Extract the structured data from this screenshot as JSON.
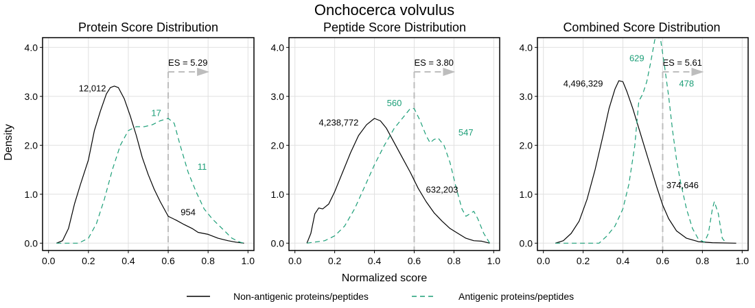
{
  "title": "Onchocerca volvulus",
  "xlabel": "Normalized score",
  "ylabel": "Density",
  "colors": {
    "non_antigenic": "#000000",
    "antigenic": "#1b9e77",
    "threshold": "#bdbdbd",
    "grid": "#e0e0e0"
  },
  "legend": {
    "position": "bottom",
    "items": [
      {
        "label": "Non-antigenic proteins/peptides",
        "style": "solid"
      },
      {
        "label": "Antigenic proteins/peptides",
        "style": "dashed"
      }
    ]
  },
  "chart_data": [
    {
      "type": "line",
      "title": "Protein Score Distribution",
      "xlim": [
        -0.03,
        1.03
      ],
      "ylim": [
        -0.15,
        4.2
      ],
      "x_ticks": [
        "0.0",
        "0.2",
        "0.4",
        "0.6",
        "0.8",
        "1.0"
      ],
      "y_ticks": [
        "0.0",
        "1.0",
        "2.0",
        "3.0",
        "4.0"
      ],
      "threshold": 0.6,
      "threshold_label": "ES = 5.29",
      "threshold_arrow_y": 3.5,
      "series": [
        {
          "name": "Non-antigenic proteins/peptides",
          "color": "#000000",
          "dash": "solid",
          "points": [
            [
              0.04,
              0.0
            ],
            [
              0.07,
              0.05
            ],
            [
              0.1,
              0.3
            ],
            [
              0.13,
              0.8
            ],
            [
              0.16,
              1.2
            ],
            [
              0.2,
              1.7
            ],
            [
              0.23,
              2.3
            ],
            [
              0.26,
              2.7
            ],
            [
              0.29,
              3.05
            ],
            [
              0.31,
              3.18
            ],
            [
              0.33,
              3.21
            ],
            [
              0.35,
              3.18
            ],
            [
              0.38,
              2.95
            ],
            [
              0.41,
              2.6
            ],
            [
              0.44,
              2.2
            ],
            [
              0.47,
              1.75
            ],
            [
              0.5,
              1.4
            ],
            [
              0.53,
              1.1
            ],
            [
              0.56,
              0.85
            ],
            [
              0.6,
              0.55
            ],
            [
              0.64,
              0.47
            ],
            [
              0.68,
              0.38
            ],
            [
              0.72,
              0.3
            ],
            [
              0.75,
              0.22
            ],
            [
              0.8,
              0.18
            ],
            [
              0.85,
              0.1
            ],
            [
              0.9,
              0.05
            ],
            [
              0.94,
              0.02
            ],
            [
              0.98,
              0.0
            ]
          ]
        },
        {
          "name": "Antigenic proteins/peptides",
          "color": "#1b9e77",
          "dash": "dashed",
          "points": [
            [
              0.04,
              0.0
            ],
            [
              0.15,
              0.0
            ],
            [
              0.2,
              0.1
            ],
            [
              0.24,
              0.4
            ],
            [
              0.28,
              0.9
            ],
            [
              0.32,
              1.5
            ],
            [
              0.36,
              2.0
            ],
            [
              0.4,
              2.3
            ],
            [
              0.44,
              2.38
            ],
            [
              0.48,
              2.38
            ],
            [
              0.52,
              2.42
            ],
            [
              0.56,
              2.5
            ],
            [
              0.6,
              2.55
            ],
            [
              0.63,
              2.45
            ],
            [
              0.66,
              2.0
            ],
            [
              0.7,
              1.45
            ],
            [
              0.74,
              1.05
            ],
            [
              0.78,
              0.7
            ],
            [
              0.82,
              0.5
            ],
            [
              0.87,
              0.3
            ],
            [
              0.92,
              0.1
            ],
            [
              0.96,
              0.02
            ],
            [
              0.98,
              0.0
            ]
          ]
        }
      ],
      "annotations": [
        {
          "text": "12,012",
          "x": 0.22,
          "y": 3.1,
          "series": 0
        },
        {
          "text": "17",
          "x": 0.54,
          "y": 2.6,
          "series": 1
        },
        {
          "text": "11",
          "x": 0.77,
          "y": 1.5,
          "series": 1
        },
        {
          "text": "954",
          "x": 0.7,
          "y": 0.57,
          "series": 0
        }
      ]
    },
    {
      "type": "line",
      "title": "Peptide Score Distribution",
      "xlim": [
        -0.03,
        1.03
      ],
      "ylim": [
        -0.15,
        4.2
      ],
      "x_ticks": [
        "0.0",
        "0.2",
        "0.4",
        "0.6",
        "0.8",
        "1.0"
      ],
      "y_ticks": [
        "0.0",
        "1.0",
        "2.0",
        "3.0",
        "4.0"
      ],
      "threshold": 0.6,
      "threshold_label": "ES = 3.80",
      "threshold_arrow_y": 3.5,
      "series": [
        {
          "name": "Non-antigenic proteins/peptides",
          "color": "#000000",
          "dash": "solid",
          "points": [
            [
              0.06,
              0.0
            ],
            [
              0.08,
              0.2
            ],
            [
              0.1,
              0.6
            ],
            [
              0.12,
              0.72
            ],
            [
              0.14,
              0.7
            ],
            [
              0.17,
              0.8
            ],
            [
              0.2,
              1.05
            ],
            [
              0.24,
              1.45
            ],
            [
              0.28,
              1.85
            ],
            [
              0.32,
              2.2
            ],
            [
              0.36,
              2.42
            ],
            [
              0.4,
              2.55
            ],
            [
              0.43,
              2.5
            ],
            [
              0.46,
              2.35
            ],
            [
              0.5,
              2.05
            ],
            [
              0.54,
              1.75
            ],
            [
              0.58,
              1.45
            ],
            [
              0.62,
              1.12
            ],
            [
              0.66,
              0.85
            ],
            [
              0.7,
              0.62
            ],
            [
              0.74,
              0.45
            ],
            [
              0.78,
              0.3
            ],
            [
              0.82,
              0.2
            ],
            [
              0.86,
              0.1
            ],
            [
              0.9,
              0.05
            ],
            [
              0.94,
              0.04
            ],
            [
              0.98,
              0.0
            ]
          ]
        },
        {
          "name": "Antigenic proteins/peptides",
          "color": "#1b9e77",
          "dash": "dashed",
          "points": [
            [
              0.06,
              0.0
            ],
            [
              0.15,
              0.05
            ],
            [
              0.2,
              0.15
            ],
            [
              0.25,
              0.35
            ],
            [
              0.3,
              0.7
            ],
            [
              0.35,
              1.15
            ],
            [
              0.4,
              1.6
            ],
            [
              0.45,
              2.0
            ],
            [
              0.5,
              2.35
            ],
            [
              0.54,
              2.55
            ],
            [
              0.58,
              2.75
            ],
            [
              0.6,
              2.75
            ],
            [
              0.63,
              2.5
            ],
            [
              0.66,
              2.2
            ],
            [
              0.68,
              2.05
            ],
            [
              0.7,
              2.12
            ],
            [
              0.72,
              2.15
            ],
            [
              0.75,
              2.0
            ],
            [
              0.78,
              1.65
            ],
            [
              0.81,
              1.15
            ],
            [
              0.84,
              0.7
            ],
            [
              0.86,
              0.55
            ],
            [
              0.88,
              0.6
            ],
            [
              0.9,
              0.65
            ],
            [
              0.92,
              0.5
            ],
            [
              0.95,
              0.2
            ],
            [
              0.98,
              0.0
            ]
          ]
        }
      ],
      "annotations": [
        {
          "text": "4,238,772",
          "x": 0.22,
          "y": 2.4,
          "series": 0
        },
        {
          "text": "560",
          "x": 0.5,
          "y": 2.8,
          "series": 1
        },
        {
          "text": "547",
          "x": 0.86,
          "y": 2.2,
          "series": 1
        },
        {
          "text": "632,203",
          "x": 0.74,
          "y": 1.03,
          "series": 0
        }
      ]
    },
    {
      "type": "line",
      "title": "Combined Score Distribution",
      "xlim": [
        -0.03,
        1.03
      ],
      "ylim": [
        -0.15,
        4.2
      ],
      "x_ticks": [
        "0.0",
        "0.2",
        "0.4",
        "0.6",
        "0.8",
        "1.0"
      ],
      "y_ticks": [
        "0.0",
        "1.0",
        "2.0",
        "3.0",
        "4.0"
      ],
      "threshold": 0.6,
      "threshold_label": "ES = 5.61",
      "threshold_arrow_y": 3.5,
      "series": [
        {
          "name": "Non-antigenic proteins/peptides",
          "color": "#000000",
          "dash": "solid",
          "points": [
            [
              0.06,
              0.0
            ],
            [
              0.1,
              0.05
            ],
            [
              0.14,
              0.2
            ],
            [
              0.18,
              0.45
            ],
            [
              0.22,
              0.9
            ],
            [
              0.26,
              1.5
            ],
            [
              0.3,
              2.2
            ],
            [
              0.33,
              2.75
            ],
            [
              0.36,
              3.15
            ],
            [
              0.38,
              3.32
            ],
            [
              0.4,
              3.3
            ],
            [
              0.42,
              3.1
            ],
            [
              0.45,
              2.75
            ],
            [
              0.48,
              2.35
            ],
            [
              0.51,
              1.95
            ],
            [
              0.54,
              1.55
            ],
            [
              0.57,
              1.15
            ],
            [
              0.6,
              0.78
            ],
            [
              0.63,
              0.5
            ],
            [
              0.67,
              0.25
            ],
            [
              0.72,
              0.1
            ],
            [
              0.78,
              0.03
            ],
            [
              0.85,
              0.01
            ],
            [
              0.97,
              0.0
            ]
          ]
        },
        {
          "name": "Antigenic proteins/peptides",
          "color": "#1b9e77",
          "dash": "dashed",
          "points": [
            [
              0.06,
              0.0
            ],
            [
              0.28,
              0.0
            ],
            [
              0.32,
              0.15
            ],
            [
              0.36,
              0.35
            ],
            [
              0.4,
              0.7
            ],
            [
              0.43,
              1.2
            ],
            [
              0.46,
              2.0
            ],
            [
              0.48,
              2.9
            ],
            [
              0.5,
              3.05
            ],
            [
              0.52,
              3.3
            ],
            [
              0.54,
              3.7
            ],
            [
              0.56,
              4.15
            ],
            [
              0.57,
              4.25
            ],
            [
              0.59,
              4.15
            ],
            [
              0.61,
              3.6
            ],
            [
              0.63,
              3.0
            ],
            [
              0.65,
              2.3
            ],
            [
              0.67,
              1.7
            ],
            [
              0.69,
              1.25
            ],
            [
              0.72,
              0.7
            ],
            [
              0.75,
              0.3
            ],
            [
              0.78,
              0.08
            ],
            [
              0.81,
              0.02
            ],
            [
              0.83,
              0.2
            ],
            [
              0.85,
              0.7
            ],
            [
              0.86,
              0.85
            ],
            [
              0.88,
              0.6
            ],
            [
              0.9,
              0.1
            ],
            [
              0.92,
              0.0
            ]
          ]
        }
      ],
      "annotations": [
        {
          "text": "4,496,329",
          "x": 0.2,
          "y": 3.2,
          "series": 0
        },
        {
          "text": "629",
          "x": 0.47,
          "y": 3.72,
          "series": 1
        },
        {
          "text": "478",
          "x": 0.72,
          "y": 3.2,
          "series": 1
        },
        {
          "text": "374,646",
          "x": 0.7,
          "y": 1.12,
          "series": 0
        }
      ]
    }
  ]
}
